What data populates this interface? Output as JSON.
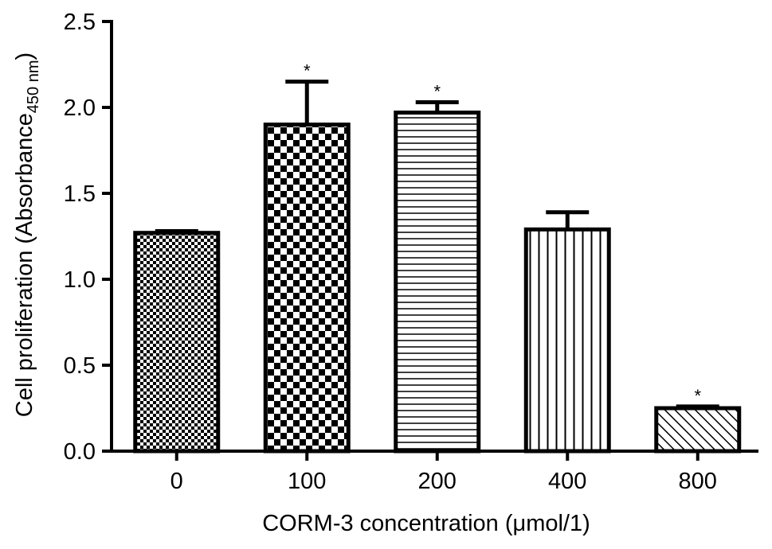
{
  "chart_data": {
    "type": "bar",
    "categories": [
      "0",
      "100",
      "200",
      "400",
      "800"
    ],
    "values": [
      1.27,
      1.9,
      1.97,
      1.29,
      0.25
    ],
    "error_upper": [
      1.28,
      2.15,
      2.03,
      1.39,
      0.26
    ],
    "significance": [
      "",
      "*",
      "*",
      "",
      "*"
    ],
    "fill_patterns": [
      "fine-checker",
      "checker",
      "horizontal-lines",
      "vertical-lines",
      "diagonal-lines"
    ],
    "xlabel": "CORM-3 concentration (μmol/1)",
    "ylabel_main": "Cell proliferation (Absorbance",
    "ylabel_sub": "450 nm",
    "ylabel_close": ")",
    "ylim": [
      0,
      2.5
    ],
    "yticks": [
      "0.0",
      "0.5",
      "1.0",
      "1.5",
      "2.0",
      "2.5"
    ],
    "grid": false,
    "legend": "none",
    "colors": {
      "bar_stroke": "#000000",
      "bar_fill": "#ffffff",
      "pattern": "#000000"
    }
  }
}
